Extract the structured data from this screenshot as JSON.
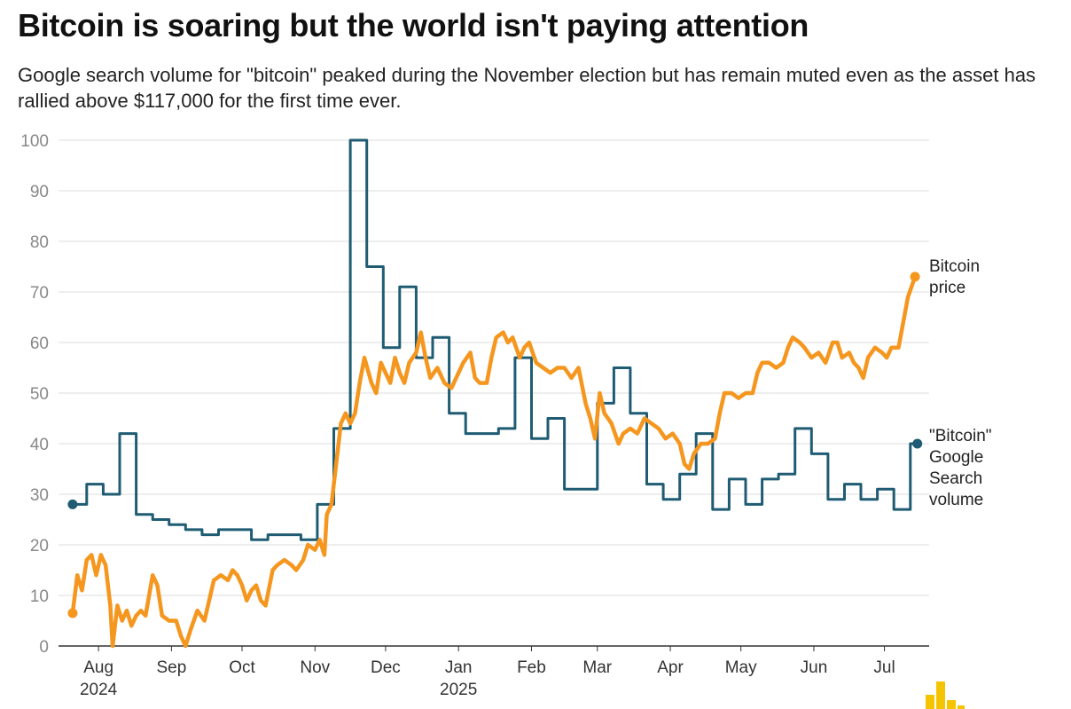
{
  "chart_data": {
    "type": "line",
    "title": "Bitcoin is soaring but the world isn't paying attention",
    "subtitle": "Google search volume for \"bitcoin\" peaked during the November election but has remain muted even as the asset has rallied above $117,000 for the first time ever.",
    "ylim": [
      0,
      100
    ],
    "yticks": [
      "0",
      "10",
      "20",
      "30",
      "40",
      "50",
      "60",
      "70",
      "80",
      "90",
      "100"
    ],
    "xlim": [
      "2024-07-15",
      "2025-07-20"
    ],
    "xticks": [
      {
        "date": "2024-08-01",
        "label": "Aug",
        "sublabel": "2024"
      },
      {
        "date": "2024-09-01",
        "label": "Sep",
        "sublabel": ""
      },
      {
        "date": "2024-10-01",
        "label": "Oct",
        "sublabel": ""
      },
      {
        "date": "2024-11-01",
        "label": "Nov",
        "sublabel": ""
      },
      {
        "date": "2024-12-01",
        "label": "Dec",
        "sublabel": ""
      },
      {
        "date": "2025-01-01",
        "label": "Jan",
        "sublabel": "2025"
      },
      {
        "date": "2025-02-01",
        "label": "Feb",
        "sublabel": ""
      },
      {
        "date": "2025-03-01",
        "label": "Mar",
        "sublabel": ""
      },
      {
        "date": "2025-04-01",
        "label": "Apr",
        "sublabel": ""
      },
      {
        "date": "2025-05-01",
        "label": "May",
        "sublabel": ""
      },
      {
        "date": "2025-06-01",
        "label": "Jun",
        "sublabel": ""
      },
      {
        "date": "2025-07-01",
        "label": "Jul",
        "sublabel": ""
      }
    ],
    "series": [
      {
        "name": "\"Bitcoin\" Google Search volume",
        "label_lines": [
          "\"Bitcoin\"",
          "Google",
          "Search",
          "volume"
        ],
        "color": "#1f5c73",
        "step": true,
        "points": [
          [
            "2024-07-21",
            28
          ],
          [
            "2024-07-27",
            32
          ],
          [
            "2024-08-03",
            30
          ],
          [
            "2024-08-10",
            42
          ],
          [
            "2024-08-17",
            26
          ],
          [
            "2024-08-24",
            25
          ],
          [
            "2024-08-31",
            24
          ],
          [
            "2024-09-07",
            23
          ],
          [
            "2024-09-14",
            22
          ],
          [
            "2024-09-21",
            23
          ],
          [
            "2024-09-28",
            23
          ],
          [
            "2024-10-05",
            21
          ],
          [
            "2024-10-12",
            22
          ],
          [
            "2024-10-19",
            22
          ],
          [
            "2024-10-26",
            21
          ],
          [
            "2024-11-02",
            28
          ],
          [
            "2024-11-09",
            43
          ],
          [
            "2024-11-16",
            100
          ],
          [
            "2024-11-23",
            75
          ],
          [
            "2024-11-30",
            59
          ],
          [
            "2024-12-07",
            71
          ],
          [
            "2024-12-14",
            57
          ],
          [
            "2024-12-21",
            61
          ],
          [
            "2024-12-28",
            46
          ],
          [
            "2025-01-04",
            42
          ],
          [
            "2025-01-11",
            42
          ],
          [
            "2025-01-18",
            43
          ],
          [
            "2025-01-25",
            57
          ],
          [
            "2025-02-01",
            41
          ],
          [
            "2025-02-08",
            45
          ],
          [
            "2025-02-15",
            31
          ],
          [
            "2025-02-22",
            31
          ],
          [
            "2025-03-01",
            48
          ],
          [
            "2025-03-08",
            55
          ],
          [
            "2025-03-15",
            46
          ],
          [
            "2025-03-22",
            32
          ],
          [
            "2025-03-29",
            29
          ],
          [
            "2025-04-05",
            34
          ],
          [
            "2025-04-12",
            42
          ],
          [
            "2025-04-19",
            27
          ],
          [
            "2025-04-26",
            33
          ],
          [
            "2025-05-03",
            28
          ],
          [
            "2025-05-10",
            33
          ],
          [
            "2025-05-17",
            34
          ],
          [
            "2025-05-24",
            43
          ],
          [
            "2025-05-31",
            38
          ],
          [
            "2025-06-07",
            29
          ],
          [
            "2025-06-14",
            32
          ],
          [
            "2025-06-21",
            29
          ],
          [
            "2025-06-28",
            31
          ],
          [
            "2025-07-05",
            27
          ],
          [
            "2025-07-12",
            40
          ],
          [
            "2025-07-15",
            40
          ]
        ]
      },
      {
        "name": "Bitcoin price",
        "label_lines": [
          "Bitcoin",
          "price"
        ],
        "color": "#f5961e",
        "step": false,
        "points": [
          [
            "2024-07-21",
            6.5
          ],
          [
            "2024-07-23",
            14
          ],
          [
            "2024-07-25",
            11
          ],
          [
            "2024-07-27",
            17
          ],
          [
            "2024-07-29",
            18
          ],
          [
            "2024-07-31",
            14
          ],
          [
            "2024-08-02",
            18
          ],
          [
            "2024-08-04",
            16
          ],
          [
            "2024-08-06",
            8
          ],
          [
            "2024-08-07",
            0
          ],
          [
            "2024-08-09",
            8
          ],
          [
            "2024-08-11",
            5
          ],
          [
            "2024-08-13",
            7
          ],
          [
            "2024-08-15",
            4
          ],
          [
            "2024-08-17",
            6
          ],
          [
            "2024-08-19",
            7
          ],
          [
            "2024-08-21",
            6
          ],
          [
            "2024-08-24",
            14
          ],
          [
            "2024-08-26",
            12
          ],
          [
            "2024-08-28",
            6
          ],
          [
            "2024-08-31",
            5
          ],
          [
            "2024-09-03",
            5
          ],
          [
            "2024-09-05",
            2
          ],
          [
            "2024-09-07",
            0
          ],
          [
            "2024-09-09",
            3
          ],
          [
            "2024-09-12",
            7
          ],
          [
            "2024-09-15",
            5
          ],
          [
            "2024-09-17",
            9
          ],
          [
            "2024-09-19",
            13
          ],
          [
            "2024-09-22",
            14
          ],
          [
            "2024-09-25",
            13
          ],
          [
            "2024-09-27",
            15
          ],
          [
            "2024-09-29",
            14
          ],
          [
            "2024-10-01",
            12
          ],
          [
            "2024-10-03",
            9
          ],
          [
            "2024-10-05",
            11
          ],
          [
            "2024-10-07",
            12
          ],
          [
            "2024-10-09",
            9
          ],
          [
            "2024-10-11",
            8
          ],
          [
            "2024-10-14",
            15
          ],
          [
            "2024-10-16",
            16
          ],
          [
            "2024-10-19",
            17
          ],
          [
            "2024-10-22",
            16
          ],
          [
            "2024-10-24",
            15
          ],
          [
            "2024-10-27",
            17
          ],
          [
            "2024-10-29",
            20
          ],
          [
            "2024-11-01",
            19
          ],
          [
            "2024-11-03",
            21
          ],
          [
            "2024-11-05",
            18
          ],
          [
            "2024-11-06",
            26
          ],
          [
            "2024-11-08",
            28
          ],
          [
            "2024-11-10",
            36
          ],
          [
            "2024-11-12",
            44
          ],
          [
            "2024-11-14",
            46
          ],
          [
            "2024-11-16",
            44
          ],
          [
            "2024-11-18",
            46
          ],
          [
            "2024-11-20",
            52
          ],
          [
            "2024-11-22",
            57
          ],
          [
            "2024-11-25",
            52
          ],
          [
            "2024-11-27",
            50
          ],
          [
            "2024-11-29",
            56
          ],
          [
            "2024-12-01",
            54
          ],
          [
            "2024-12-03",
            52
          ],
          [
            "2024-12-05",
            57
          ],
          [
            "2024-12-07",
            54
          ],
          [
            "2024-12-09",
            52
          ],
          [
            "2024-12-11",
            56
          ],
          [
            "2024-12-14",
            58
          ],
          [
            "2024-12-16",
            62
          ],
          [
            "2024-12-18",
            57
          ],
          [
            "2024-12-20",
            53
          ],
          [
            "2024-12-23",
            55
          ],
          [
            "2024-12-26",
            52
          ],
          [
            "2024-12-29",
            51
          ],
          [
            "2025-01-01",
            54
          ],
          [
            "2025-01-03",
            56
          ],
          [
            "2025-01-06",
            58
          ],
          [
            "2025-01-08",
            53
          ],
          [
            "2025-01-10",
            52
          ],
          [
            "2025-01-13",
            52
          ],
          [
            "2025-01-15",
            57
          ],
          [
            "2025-01-17",
            61
          ],
          [
            "2025-01-20",
            62
          ],
          [
            "2025-01-22",
            60
          ],
          [
            "2025-01-24",
            61
          ],
          [
            "2025-01-27",
            57
          ],
          [
            "2025-01-29",
            59
          ],
          [
            "2025-01-31",
            60
          ],
          [
            "2025-02-03",
            56
          ],
          [
            "2025-02-06",
            55
          ],
          [
            "2025-02-09",
            54
          ],
          [
            "2025-02-12",
            55
          ],
          [
            "2025-02-15",
            55
          ],
          [
            "2025-02-18",
            53
          ],
          [
            "2025-02-21",
            55
          ],
          [
            "2025-02-24",
            48
          ],
          [
            "2025-02-26",
            45
          ],
          [
            "2025-02-28",
            41
          ],
          [
            "2025-03-02",
            50
          ],
          [
            "2025-03-04",
            46
          ],
          [
            "2025-03-07",
            44
          ],
          [
            "2025-03-10",
            40
          ],
          [
            "2025-03-12",
            42
          ],
          [
            "2025-03-15",
            43
          ],
          [
            "2025-03-18",
            42
          ],
          [
            "2025-03-21",
            45
          ],
          [
            "2025-03-24",
            44
          ],
          [
            "2025-03-27",
            43
          ],
          [
            "2025-03-30",
            41
          ],
          [
            "2025-04-02",
            42
          ],
          [
            "2025-04-05",
            40
          ],
          [
            "2025-04-07",
            36
          ],
          [
            "2025-04-09",
            35
          ],
          [
            "2025-04-11",
            38
          ],
          [
            "2025-04-14",
            40
          ],
          [
            "2025-04-17",
            40
          ],
          [
            "2025-04-20",
            41
          ],
          [
            "2025-04-22",
            46
          ],
          [
            "2025-04-24",
            50
          ],
          [
            "2025-04-27",
            50
          ],
          [
            "2025-04-30",
            49
          ],
          [
            "2025-05-03",
            50
          ],
          [
            "2025-05-06",
            50
          ],
          [
            "2025-05-08",
            54
          ],
          [
            "2025-05-10",
            56
          ],
          [
            "2025-05-13",
            56
          ],
          [
            "2025-05-16",
            55
          ],
          [
            "2025-05-19",
            56
          ],
          [
            "2025-05-21",
            59
          ],
          [
            "2025-05-23",
            61
          ],
          [
            "2025-05-26",
            60
          ],
          [
            "2025-05-28",
            59
          ],
          [
            "2025-05-31",
            57
          ],
          [
            "2025-06-03",
            58
          ],
          [
            "2025-06-06",
            56
          ],
          [
            "2025-06-09",
            60
          ],
          [
            "2025-06-11",
            60
          ],
          [
            "2025-06-13",
            57
          ],
          [
            "2025-06-16",
            58
          ],
          [
            "2025-06-18",
            56
          ],
          [
            "2025-06-20",
            55
          ],
          [
            "2025-06-22",
            53
          ],
          [
            "2025-06-24",
            57
          ],
          [
            "2025-06-27",
            59
          ],
          [
            "2025-06-30",
            58
          ],
          [
            "2025-07-02",
            57
          ],
          [
            "2025-07-04",
            59
          ],
          [
            "2025-07-07",
            59
          ],
          [
            "2025-07-09",
            64
          ],
          [
            "2025-07-11",
            69
          ],
          [
            "2025-07-14",
            73
          ]
        ]
      }
    ]
  }
}
